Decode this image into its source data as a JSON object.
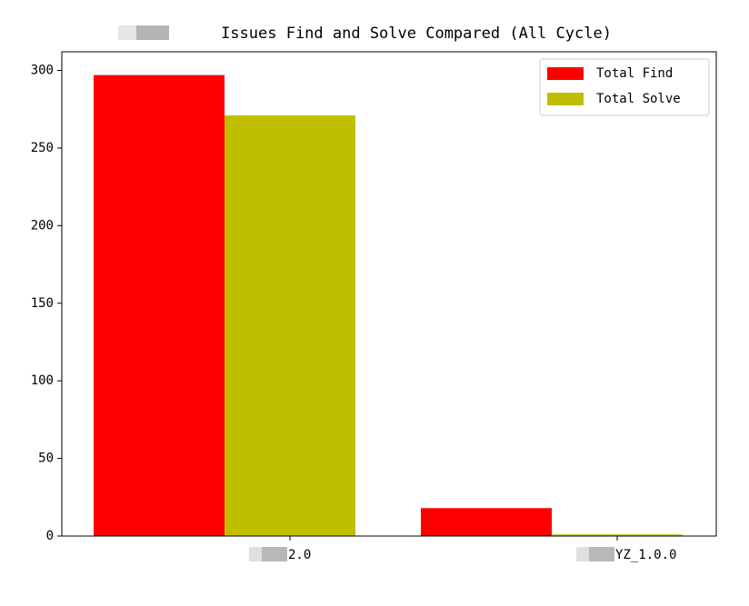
{
  "chart_data": {
    "type": "grouped_bar",
    "title": "Issues Find and Solve Compared (All Cycle)",
    "categories": [
      "2.0",
      "YZ_1.0.0"
    ],
    "series": [
      {
        "name": "Total Find",
        "color": "#ff0000",
        "values": [
          297,
          18
        ]
      },
      {
        "name": "Total Solve",
        "color": "#bfbf00",
        "values": [
          271,
          1
        ]
      }
    ],
    "ylim": [
      0,
      312
    ],
    "yticks": [
      0,
      50,
      100,
      150,
      200,
      250,
      300
    ],
    "legend": "upper right",
    "grid": false
  }
}
